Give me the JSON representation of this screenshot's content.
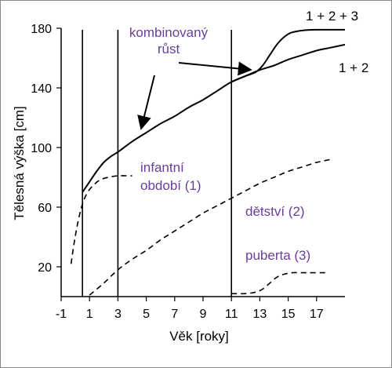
{
  "chart_data": {
    "type": "line",
    "xlabel": "Věk [roky]",
    "ylabel": "Tělesná výška [cm]",
    "xlim": [
      -1,
      19
    ],
    "ylim": [
      0,
      180
    ],
    "x_ticks": [
      -1,
      1,
      3,
      5,
      7,
      9,
      11,
      13,
      15,
      17
    ],
    "y_ticks": [
      20,
      60,
      100,
      140,
      180
    ],
    "vertical_lines": [
      0.5,
      3,
      11
    ],
    "series": [
      {
        "name": "1 + 2 + 3",
        "style": "solid",
        "x": [
          11,
          12,
          12.7,
          13.2,
          13.7,
          14.2,
          14.7,
          15.2,
          16,
          17,
          18,
          19
        ],
        "y": [
          144,
          148,
          150.5,
          155,
          162,
          169,
          174,
          177,
          178.5,
          179,
          179,
          179
        ]
      },
      {
        "name": "1 + 2",
        "style": "solid",
        "x": [
          0.5,
          1,
          1.5,
          2,
          2.5,
          3,
          4,
          5,
          6,
          7,
          8,
          9,
          10,
          11,
          12,
          13,
          14,
          15,
          16,
          17,
          18,
          19
        ],
        "y": [
          70,
          77,
          84,
          90,
          94,
          97,
          104,
          110,
          116,
          121,
          127,
          132,
          138,
          144,
          148,
          152,
          155,
          159,
          162,
          165,
          167,
          169
        ]
      },
      {
        "name": "infantní období (1)",
        "style": "dashed",
        "x": [
          -0.3,
          -0.1,
          0.1,
          0.3,
          0.5,
          0.8,
          1.2,
          1.7,
          2.3,
          3,
          4
        ],
        "y": [
          22,
          35,
          46,
          55,
          62,
          69,
          74,
          78,
          80,
          81,
          81
        ]
      },
      {
        "name": "dětství (2)",
        "style": "dashed",
        "x": [
          1,
          2,
          3,
          4,
          5,
          6,
          7,
          8,
          9,
          10,
          11,
          12,
          13,
          14,
          15,
          16,
          17,
          18
        ],
        "y": [
          1,
          9,
          18,
          25,
          31,
          38,
          44,
          50,
          56,
          61,
          66,
          71,
          76,
          80,
          84,
          87,
          90,
          92
        ]
      },
      {
        "name": "puberta (3)",
        "style": "dashed",
        "x": [
          11,
          12,
          12.7,
          13.2,
          13.7,
          14.2,
          14.7,
          15.3,
          16,
          16.7,
          17.6
        ],
        "y": [
          2,
          2,
          3,
          5,
          9,
          13,
          15,
          16,
          16,
          16,
          16
        ]
      }
    ],
    "annotations": [
      {
        "text_line1": "kombinovaný",
        "text_line2": "růst"
      },
      {
        "text": "infantní",
        "text_line2": "období (1)"
      },
      {
        "text": "dětství (2)"
      },
      {
        "text": "puberta (3)"
      },
      {
        "text": "1 + 2 + 3"
      },
      {
        "text": "1 + 2"
      }
    ]
  }
}
